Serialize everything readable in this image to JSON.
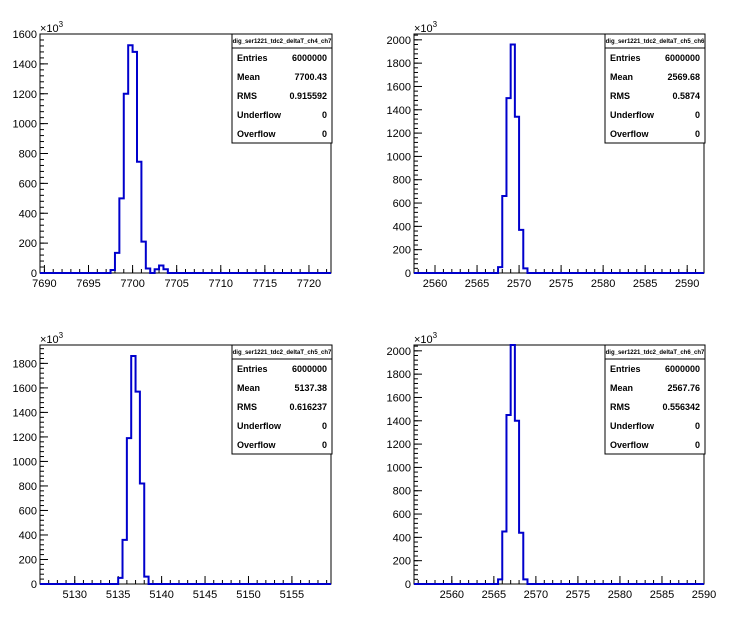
{
  "chart_data": [
    {
      "type": "histogram",
      "stats": {
        "name": "dig_ser1221_tdc2_deltaT_ch4_ch7",
        "rows": [
          {
            "label": "Entries",
            "value": "6000000"
          },
          {
            "label": "Mean",
            "value": "7700.43"
          },
          {
            "label": "RMS",
            "value": "0.915592"
          },
          {
            "label": "Underflow",
            "value": "0"
          },
          {
            "label": "Overflow",
            "value": "0"
          }
        ]
      },
      "y_multiplier": "×10",
      "y_multiplier_exp": "3",
      "xlim": [
        7689.5,
        7722.5
      ],
      "ylim": [
        0,
        1600
      ],
      "x_ticks": [
        7690,
        7695,
        7700,
        7705,
        7710,
        7715,
        7720
      ],
      "y_ticks": [
        0,
        200,
        400,
        600,
        800,
        1000,
        1200,
        1400,
        1600
      ],
      "bin_width": 0.5,
      "bins_x": [
        7696.5,
        7697,
        7697.5,
        7698,
        7698.5,
        7699,
        7699.5,
        7700,
        7700.5,
        7701,
        7701.5,
        7702,
        7702.5,
        7703,
        7703.5,
        7704,
        7704.5,
        7705
      ],
      "bins_y": [
        0,
        0,
        20,
        135,
        500,
        1200,
        1525,
        1480,
        745,
        210,
        30,
        0,
        25,
        50,
        25,
        0,
        0,
        0
      ]
    },
    {
      "type": "histogram",
      "stats": {
        "name": "dig_ser1221_tdc2_deltaT_ch5_ch6",
        "rows": [
          {
            "label": "Entries",
            "value": "6000000"
          },
          {
            "label": "Mean",
            "value": "2569.68"
          },
          {
            "label": "RMS",
            "value": "0.5874"
          },
          {
            "label": "Underflow",
            "value": "0"
          },
          {
            "label": "Overflow",
            "value": "0"
          }
        ]
      },
      "y_multiplier": "×10",
      "y_multiplier_exp": "3",
      "xlim": [
        2557.5,
        2592
      ],
      "ylim": [
        0,
        2050
      ],
      "x_ticks": [
        2560,
        2565,
        2570,
        2575,
        2580,
        2585,
        2590
      ],
      "y_ticks": [
        0,
        200,
        400,
        600,
        800,
        1000,
        1200,
        1400,
        1600,
        1800,
        2000
      ],
      "bin_width": 0.5,
      "bins_x": [
        2567,
        2567.5,
        2568,
        2568.5,
        2569,
        2569.5,
        2570,
        2570.5,
        2571,
        2571.5,
        2572
      ],
      "bins_y": [
        0,
        50,
        660,
        1500,
        1960,
        1340,
        370,
        40,
        0,
        0,
        0
      ]
    },
    {
      "type": "histogram",
      "stats": {
        "name": "dig_ser1221_tdc2_deltaT_ch5_ch7",
        "rows": [
          {
            "label": "Entries",
            "value": "6000000"
          },
          {
            "label": "Mean",
            "value": "5137.38"
          },
          {
            "label": "RMS",
            "value": "0.616237"
          },
          {
            "label": "Underflow",
            "value": "0"
          },
          {
            "label": "Overflow",
            "value": "0"
          }
        ]
      },
      "y_multiplier": "×10",
      "y_multiplier_exp": "3",
      "xlim": [
        5126,
        5159.5
      ],
      "ylim": [
        0,
        1950
      ],
      "x_ticks": [
        5130,
        5135,
        5140,
        5145,
        5150,
        5155
      ],
      "y_ticks": [
        0,
        200,
        400,
        600,
        800,
        1000,
        1200,
        1400,
        1600,
        1800
      ],
      "bin_width": 0.5,
      "bins_x": [
        5134.5,
        5135,
        5135.5,
        5136,
        5136.5,
        5137,
        5137.5,
        5138,
        5138.5,
        5139,
        5139.5
      ],
      "bins_y": [
        0,
        50,
        360,
        1190,
        1860,
        1570,
        820,
        60,
        0,
        0,
        0
      ]
    },
    {
      "type": "histogram",
      "stats": {
        "name": "dig_ser1221_tdc2_deltaT_ch6_ch7",
        "rows": [
          {
            "label": "Entries",
            "value": "6000000"
          },
          {
            "label": "Mean",
            "value": "2567.76"
          },
          {
            "label": "RMS",
            "value": "0.556342"
          },
          {
            "label": "Underflow",
            "value": "0"
          },
          {
            "label": "Overflow",
            "value": "0"
          }
        ]
      },
      "y_multiplier": "×10",
      "y_multiplier_exp": "3",
      "xlim": [
        2555.5,
        2590
      ],
      "ylim": [
        0,
        2050
      ],
      "x_ticks": [
        2560,
        2565,
        2570,
        2575,
        2580,
        2585,
        2590
      ],
      "y_ticks": [
        0,
        200,
        400,
        600,
        800,
        1000,
        1200,
        1400,
        1600,
        1800,
        2000
      ],
      "bin_width": 0.5,
      "bins_x": [
        2565,
        2565.5,
        2566,
        2566.5,
        2567,
        2567.5,
        2568,
        2568.5,
        2569,
        2569.5,
        2570
      ],
      "bins_y": [
        0,
        40,
        450,
        1450,
        2050,
        1400,
        440,
        40,
        0,
        0,
        0
      ]
    }
  ],
  "colors": {
    "histogram_line": "#0000cc",
    "axes": "#000000",
    "background": "#ffffff"
  }
}
